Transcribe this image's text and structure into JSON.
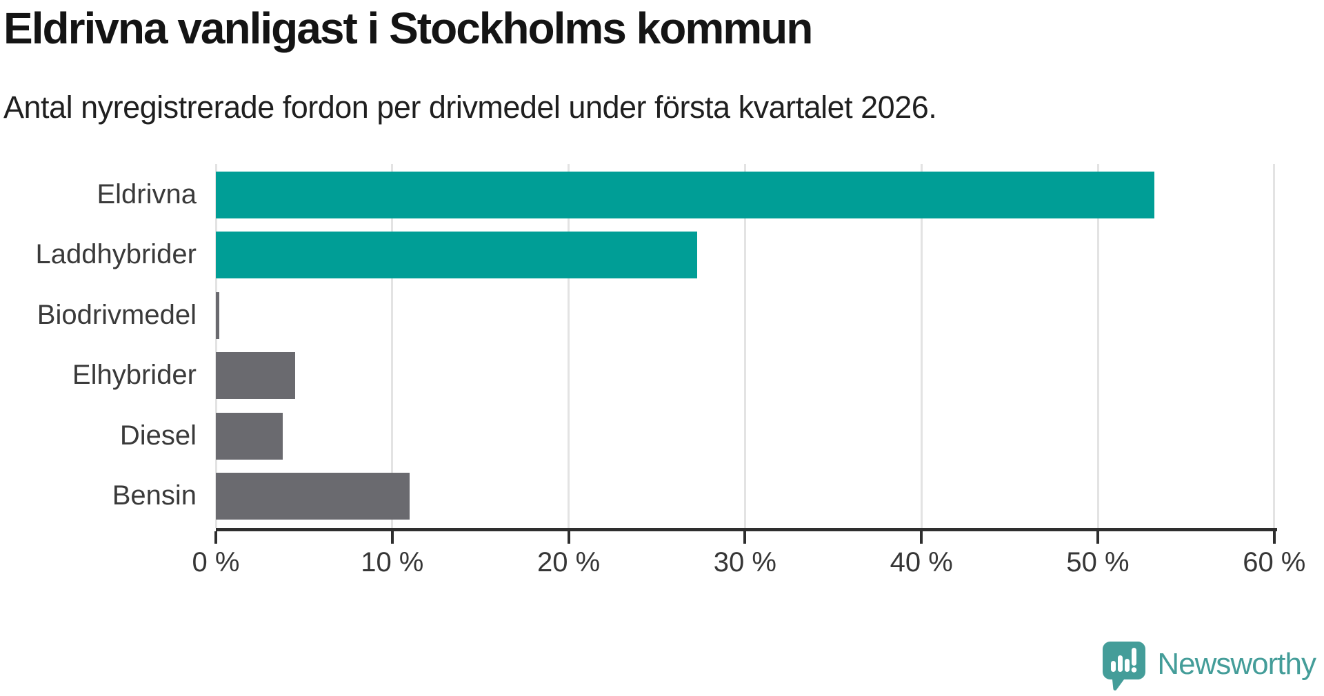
{
  "header": {
    "title": "Eldrivna vanligast i Stockholms kommun",
    "subtitle": "Antal nyregistrerade fordon per drivmedel under första kvartalet 2026."
  },
  "chart_data": {
    "type": "bar",
    "orientation": "horizontal",
    "title": "Eldrivna vanligast i Stockholms kommun",
    "subtitle": "Antal nyregistrerade fordon per drivmedel under första kvartalet 2026.",
    "categories": [
      "Eldrivna",
      "Laddhybrider",
      "Biodrivmedel",
      "Elhybrider",
      "Diesel",
      "Bensin"
    ],
    "values": [
      53.2,
      27.3,
      0.2,
      4.5,
      3.8,
      11.0
    ],
    "unit": "%",
    "xlim": [
      0,
      60
    ],
    "x_tick_values": [
      0,
      10,
      20,
      30,
      40,
      50,
      60
    ],
    "x_tick_labels": [
      "0 %",
      "10 %",
      "20 %",
      "30 %",
      "40 %",
      "50 %",
      "60 %"
    ],
    "grid": "vertical-only",
    "legend": "none",
    "bar_colors": [
      "#009e96",
      "#009e96",
      "#6a6a6f",
      "#6a6a6f",
      "#6a6a6f",
      "#6a6a6f"
    ],
    "highlight_color": "#009e96",
    "default_color": "#6a6a6f",
    "gridline_color": "#e3e3e3",
    "axis_color": "#2e2e2e"
  },
  "branding": {
    "name": "Newsworthy",
    "logo_icon": "newsworthy-bubble-chart-icon",
    "color": "#449d99",
    "icon_bubble_color": "#449d99",
    "icon_glyph_color": "#ffffff"
  }
}
